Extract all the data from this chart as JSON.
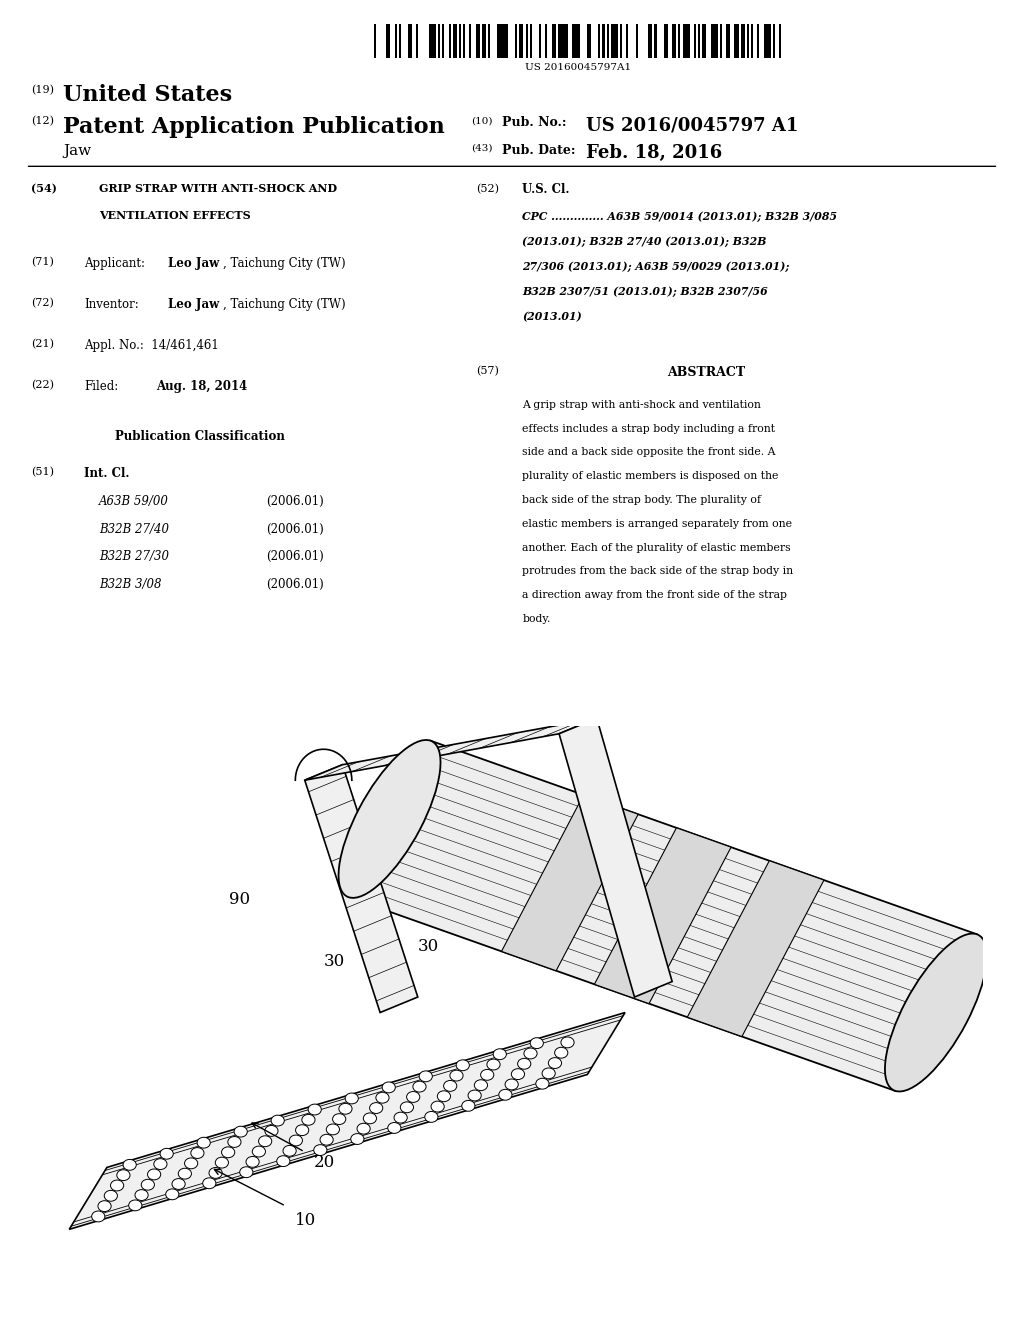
{
  "background_color": "#ffffff",
  "barcode_number": "US 20160045797A1",
  "header": {
    "line1_num": "(19)",
    "line1_text": "United States",
    "line2_num": "(12)",
    "line2_text": "Patent Application Publication",
    "line3_name": "Jaw",
    "right_num1": "(10)",
    "right_label1": "Pub. No.:",
    "right_val1": "US 2016/0045797 A1",
    "right_num2": "(43)",
    "right_label2": "Pub. Date:",
    "right_val2": "Feb. 18, 2016"
  },
  "left_col": {
    "title_num": "(54)",
    "title_line1": "GRIP STRAP WITH ANTI-SHOCK AND",
    "title_line2": "VENTILATION EFFECTS",
    "applicant_num": "(71)",
    "inventor_num": "(72)",
    "appl_num_label": "(21)",
    "appl_no": "Appl. No.:  14/461,461",
    "filed_num": "(22)",
    "filed_date": "Aug. 18, 2014",
    "pub_class_title": "Publication Classification",
    "intcl_num": "(51)",
    "intcl_label": "Int. Cl.",
    "intcl_entries": [
      [
        "A63B 59/00",
        "(2006.01)"
      ],
      [
        "B32B 27/40",
        "(2006.01)"
      ],
      [
        "B32B 27/30",
        "(2006.01)"
      ],
      [
        "B32B 3/08",
        "(2006.01)"
      ]
    ]
  },
  "right_col": {
    "uscl_num": "(52)",
    "uscl_label": "U.S. Cl.",
    "cpc_lines": [
      "CPC .............. A63B 59/0014 (2013.01); B32B 3/085",
      "(2013.01); B32B 27/40 (2013.01); B32B",
      "27/306 (2013.01); A63B 59/0029 (2013.01);",
      "B32B 2307/51 (2013.01); B32B 2307/56",
      "(2013.01)"
    ],
    "abstract_num": "(57)",
    "abstract_title": "ABSTRACT",
    "abstract_text": "A grip strap with anti-shock and ventilation effects includes a strap body including a front side and a back side opposite the front side. A plurality of elastic members is disposed on the back side of the strap body. The plurality of elastic members is arranged separately from one another. Each of the plurality of elastic members protrudes from the back side of the strap body in a direction away from the front side of the strap body."
  },
  "diagram": {
    "label_10": "10",
    "label_20": "20",
    "label_30a": "30",
    "label_30b": "30",
    "label_90": "90"
  }
}
